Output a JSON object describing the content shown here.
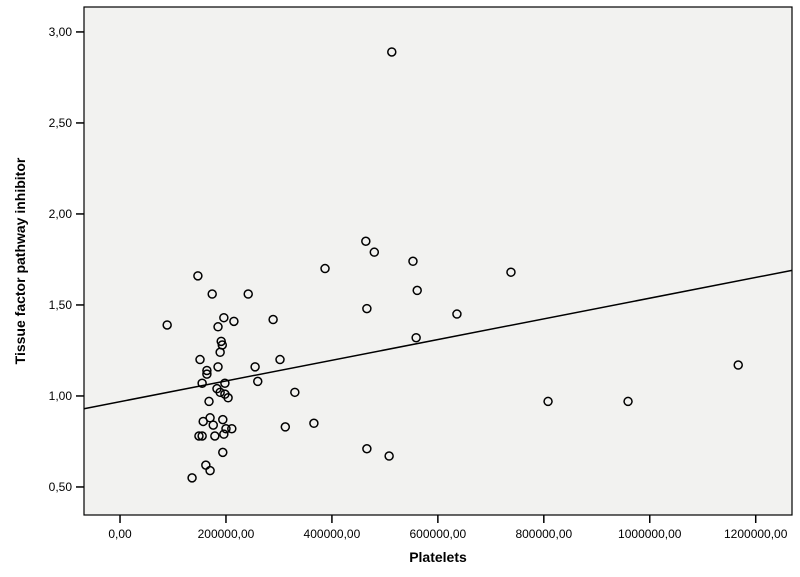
{
  "figure": {
    "background": "#ffffff",
    "plot_background": "#f2f2f0",
    "frame_color": "#000000",
    "marker_color": "#000000",
    "fit_line_color": "#000000",
    "text_color": "#000000"
  },
  "chart_data": {
    "type": "scatter",
    "title": "",
    "xlabel": "Platelets",
    "ylabel": "Tissue factor pathway inhibitor",
    "xlim": [
      -68000,
      1268500
    ],
    "ylim": [
      0.346,
      3.137
    ],
    "grid": false,
    "legend": null,
    "x_ticks": [
      {
        "value": 0,
        "label": "0,00"
      },
      {
        "value": 200000,
        "label": "200000,00"
      },
      {
        "value": 400000,
        "label": "400000,00"
      },
      {
        "value": 600000,
        "label": "600000,00"
      },
      {
        "value": 800000,
        "label": "800000,00"
      },
      {
        "value": 1000000,
        "label": "1000000,00"
      },
      {
        "value": 1200000,
        "label": "1200000,00"
      }
    ],
    "y_ticks": [
      {
        "value": 0.5,
        "label": "0,50"
      },
      {
        "value": 1.0,
        "label": "1,00"
      },
      {
        "value": 1.5,
        "label": "1,50"
      },
      {
        "value": 2.0,
        "label": "2,00"
      },
      {
        "value": 2.5,
        "label": "2,50"
      },
      {
        "value": 3.0,
        "label": "3,00"
      }
    ],
    "points_format": [
      "platelets",
      "tfpi"
    ],
    "points": [
      [
        513000,
        2.89
      ],
      [
        464000,
        1.85
      ],
      [
        480000,
        1.79
      ],
      [
        553000,
        1.74
      ],
      [
        387000,
        1.7
      ],
      [
        738000,
        1.68
      ],
      [
        147000,
        1.66
      ],
      [
        561000,
        1.58
      ],
      [
        174000,
        1.56
      ],
      [
        242000,
        1.56
      ],
      [
        466000,
        1.48
      ],
      [
        636000,
        1.45
      ],
      [
        196000,
        1.43
      ],
      [
        289000,
        1.42
      ],
      [
        215000,
        1.41
      ],
      [
        89000,
        1.39
      ],
      [
        185000,
        1.38
      ],
      [
        559000,
        1.32
      ],
      [
        191000,
        1.3
      ],
      [
        193000,
        1.28
      ],
      [
        189000,
        1.24
      ],
      [
        302000,
        1.2
      ],
      [
        151000,
        1.2
      ],
      [
        1167000,
        1.17
      ],
      [
        255000,
        1.16
      ],
      [
        185000,
        1.16
      ],
      [
        164000,
        1.14
      ],
      [
        164000,
        1.12
      ],
      [
        260000,
        1.08
      ],
      [
        155000,
        1.07
      ],
      [
        198000,
        1.07
      ],
      [
        183000,
        1.04
      ],
      [
        330000,
        1.02
      ],
      [
        189000,
        1.02
      ],
      [
        198000,
        1.01
      ],
      [
        204000,
        0.99
      ],
      [
        168000,
        0.97
      ],
      [
        808000,
        0.97
      ],
      [
        959000,
        0.97
      ],
      [
        170000,
        0.88
      ],
      [
        194000,
        0.87
      ],
      [
        157000,
        0.86
      ],
      [
        366000,
        0.85
      ],
      [
        176000,
        0.84
      ],
      [
        312000,
        0.83
      ],
      [
        200000,
        0.82
      ],
      [
        211000,
        0.82
      ],
      [
        196000,
        0.79
      ],
      [
        149000,
        0.78
      ],
      [
        155000,
        0.78
      ],
      [
        179000,
        0.78
      ],
      [
        194000,
        0.69
      ],
      [
        466000,
        0.71
      ],
      [
        508000,
        0.67
      ],
      [
        162000,
        0.62
      ],
      [
        170000,
        0.59
      ],
      [
        136000,
        0.55
      ]
    ],
    "fit_line": {
      "x1": -68000,
      "y1": 0.93,
      "x2": 1268500,
      "y2": 1.69
    }
  }
}
